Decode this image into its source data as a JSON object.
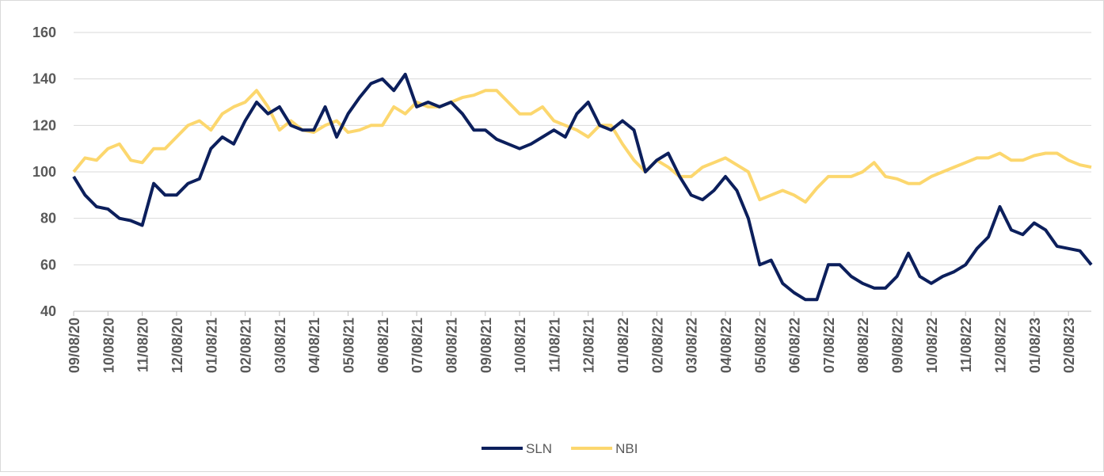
{
  "chart_data": {
    "type": "line",
    "categories": [
      "09/08/20",
      null,
      null,
      "10/08/20",
      null,
      null,
      "11/08/20",
      null,
      null,
      "12/08/20",
      null,
      null,
      "01/08/21",
      null,
      null,
      "02/08/21",
      null,
      null,
      "03/08/21",
      null,
      null,
      "04/08/21",
      null,
      null,
      "05/08/21",
      null,
      null,
      "06/08/21",
      null,
      null,
      "07/08/21",
      null,
      null,
      "08/08/21",
      null,
      null,
      "09/08/21",
      null,
      null,
      "10/08/21",
      null,
      null,
      "11/08/21",
      null,
      null,
      "12/08/21",
      null,
      null,
      "01/08/22",
      null,
      null,
      "02/08/22",
      null,
      null,
      "03/08/22",
      null,
      null,
      "04/08/22",
      null,
      null,
      "05/08/22",
      null,
      null,
      "06/08/22",
      null,
      null,
      "07/08/22",
      null,
      null,
      "08/08/22",
      null,
      null,
      "09/08/22",
      null,
      null,
      "10/08/22",
      null,
      null,
      "11/08/22",
      null,
      null,
      "12/08/22",
      null,
      null,
      "01/08/23",
      null,
      null,
      "02/08/23",
      null,
      null
    ],
    "series": [
      {
        "name": "SLN",
        "color": "#0c1f5c",
        "values": [
          98,
          90,
          85,
          84,
          80,
          79,
          77,
          95,
          90,
          90,
          95,
          97,
          110,
          115,
          112,
          122,
          130,
          125,
          128,
          120,
          118,
          118,
          128,
          115,
          125,
          132,
          138,
          140,
          135,
          142,
          128,
          130,
          128,
          130,
          125,
          118,
          118,
          114,
          112,
          110,
          112,
          115,
          118,
          115,
          125,
          130,
          120,
          118,
          122,
          118,
          100,
          105,
          108,
          98,
          90,
          88,
          92,
          98,
          92,
          80,
          60,
          62,
          52,
          48,
          45,
          45,
          60,
          60,
          55,
          52,
          50,
          50,
          55,
          65,
          55,
          52,
          55,
          57,
          60,
          67,
          72,
          85,
          75,
          73,
          78,
          75,
          68,
          67,
          66,
          60
        ]
      },
      {
        "name": "NBI",
        "color": "#fcd76e",
        "values": [
          100,
          106,
          105,
          110,
          112,
          105,
          104,
          110,
          110,
          115,
          120,
          122,
          118,
          125,
          128,
          130,
          135,
          128,
          118,
          122,
          118,
          117,
          120,
          122,
          117,
          118,
          120,
          120,
          128,
          125,
          130,
          128,
          128,
          130,
          132,
          133,
          135,
          135,
          130,
          125,
          125,
          128,
          122,
          120,
          118,
          115,
          120,
          120,
          112,
          105,
          100,
          105,
          102,
          98,
          98,
          102,
          104,
          106,
          103,
          100,
          88,
          90,
          92,
          90,
          87,
          93,
          98,
          98,
          98,
          100,
          104,
          98,
          97,
          95,
          95,
          98,
          100,
          102,
          104,
          106,
          106,
          108,
          105,
          105,
          107,
          108,
          108,
          105,
          103,
          102
        ]
      }
    ],
    "ylim": [
      40,
      160
    ],
    "yticks": [
      40,
      60,
      80,
      100,
      120,
      140,
      160
    ],
    "grid": true,
    "legend": "bottom"
  }
}
